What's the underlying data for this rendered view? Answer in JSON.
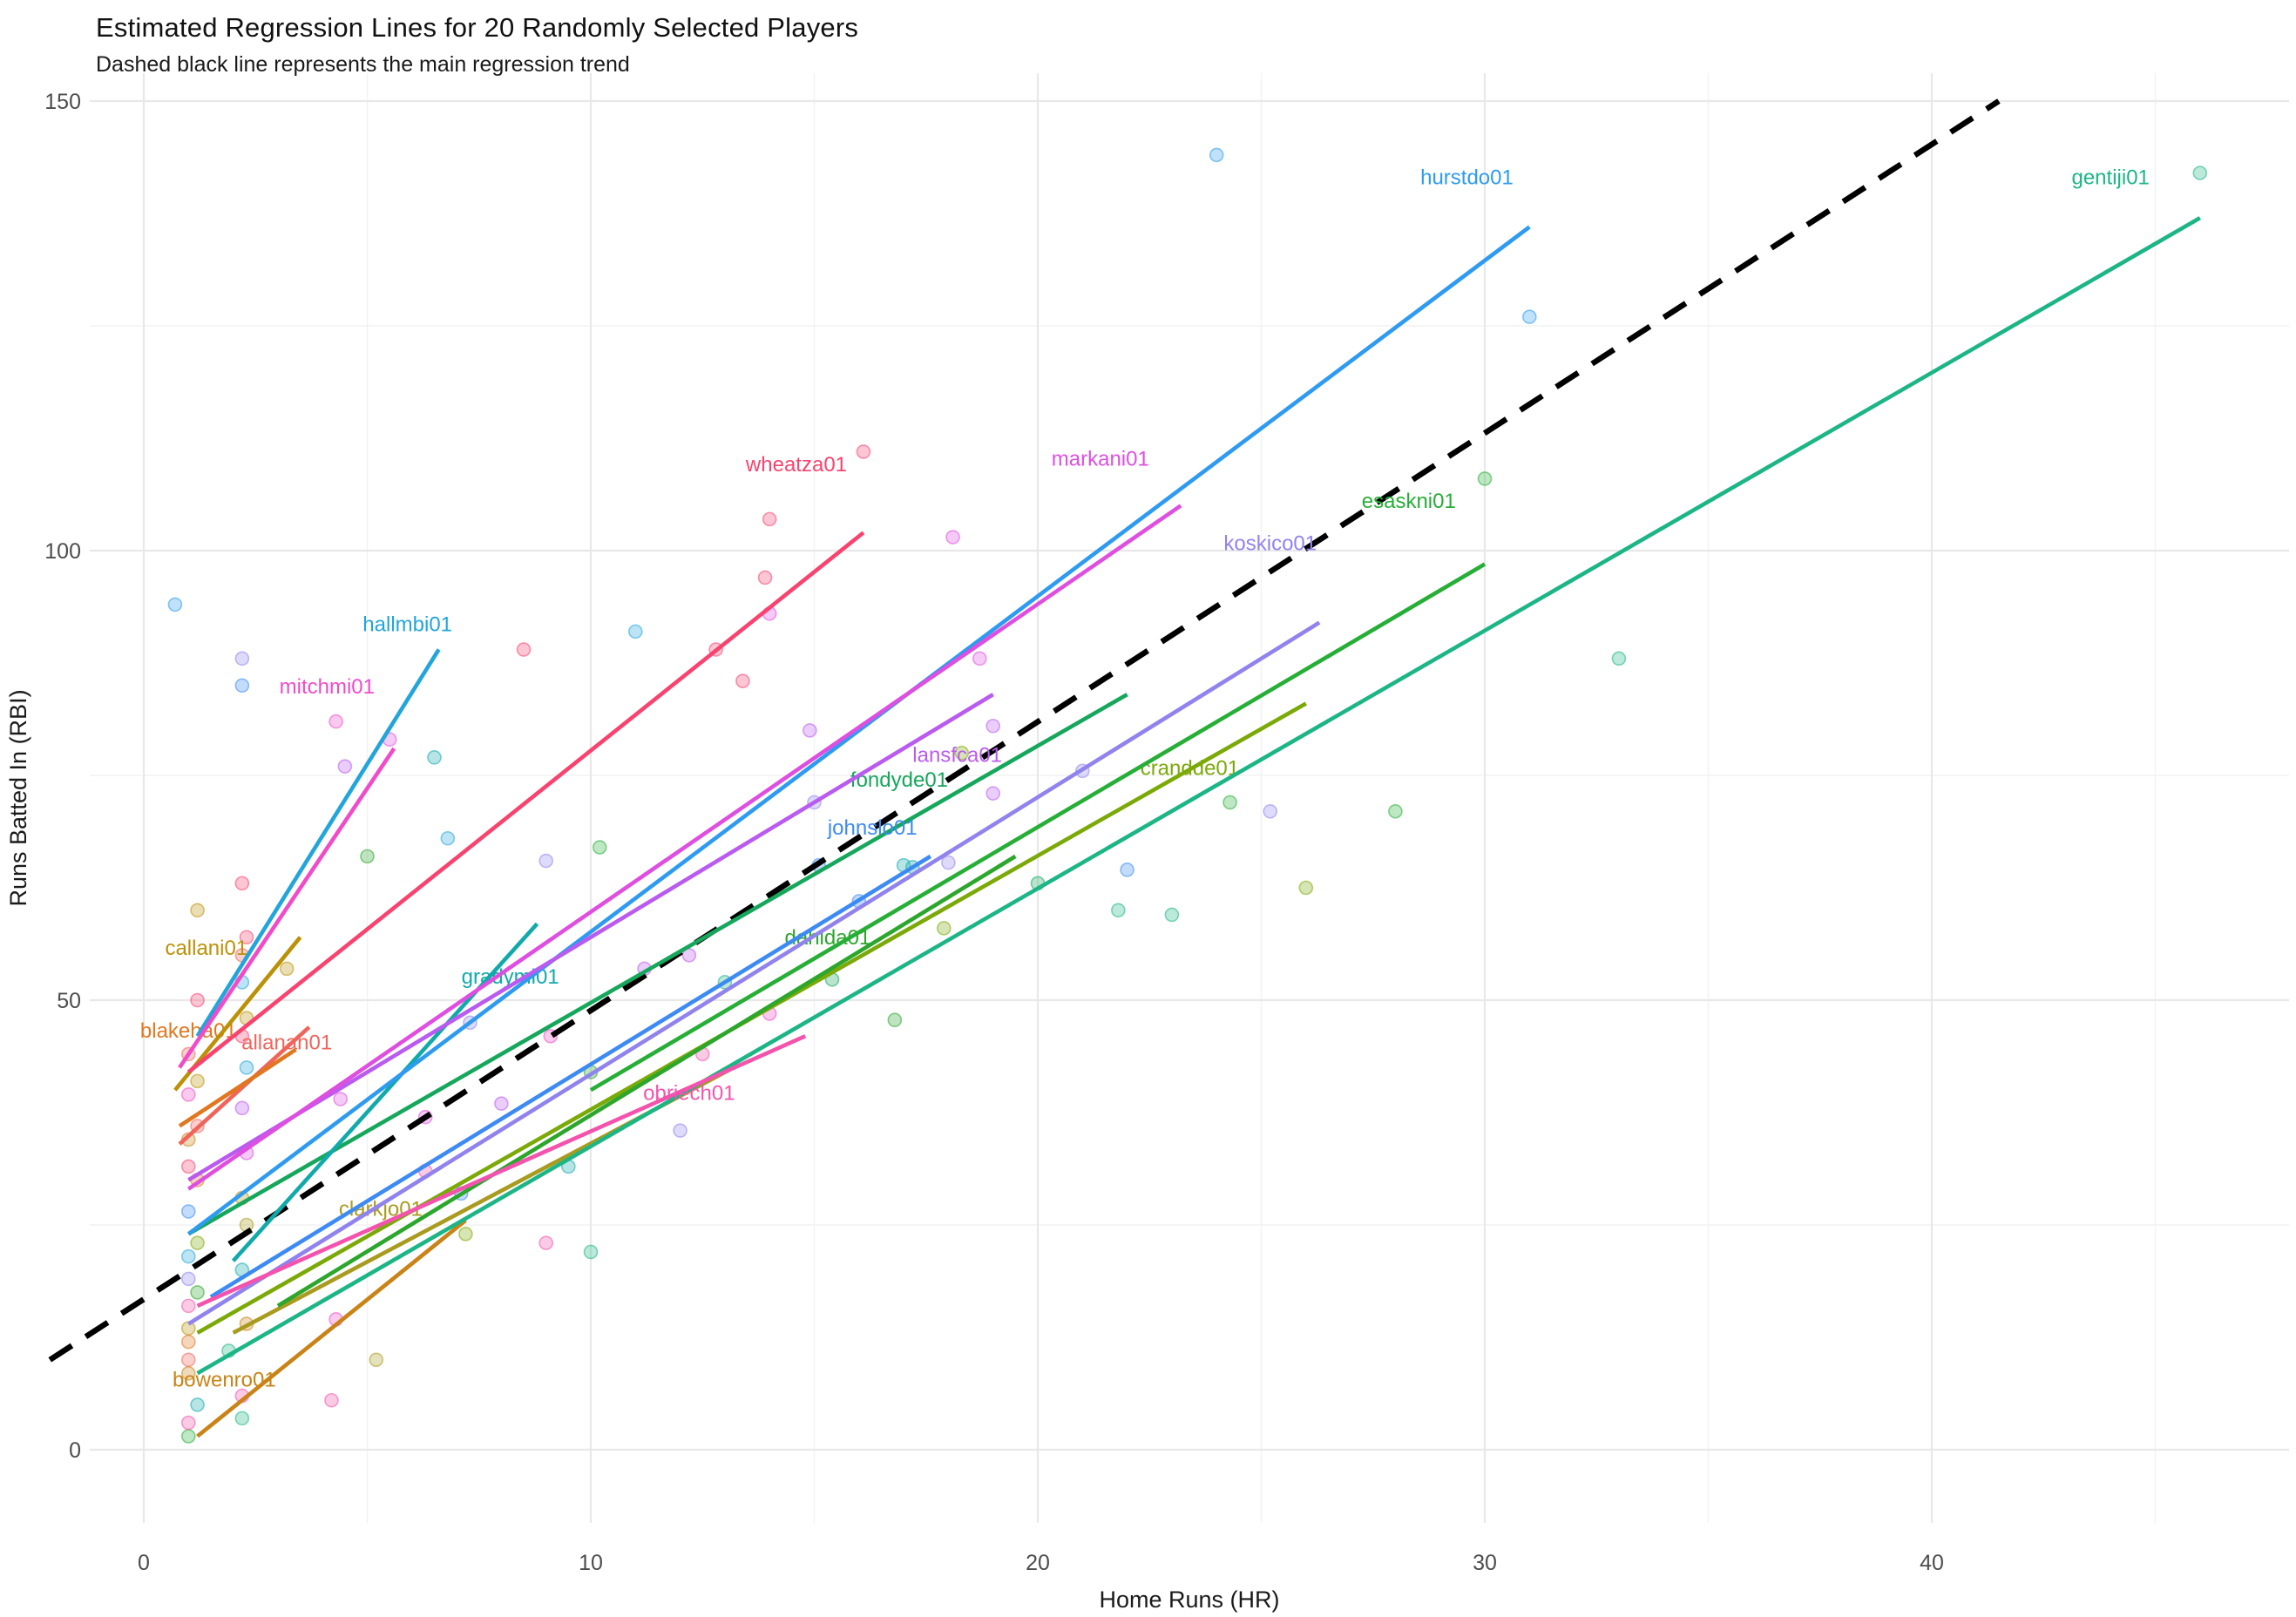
{
  "title": "Estimated Regression Lines for 20 Randomly Selected Players",
  "subtitle": "Dashed black line represents the main regression trend",
  "chart_data": {
    "type": "scatter",
    "title": "Estimated Regression Lines for 20 Randomly Selected Players",
    "subtitle": "Dashed black line represents the main regression trend",
    "xlabel": "Home Runs (HR)",
    "ylabel": "Runs Batted In (RBI)",
    "x_ticks": [
      0,
      10,
      20,
      30,
      40
    ],
    "y_ticks": [
      0,
      50,
      100,
      150
    ],
    "x_minor_ticks": [
      5,
      15,
      25,
      35,
      45
    ],
    "y_minor_ticks": [
      25,
      75,
      125
    ],
    "xlim": [
      -2.2,
      47.9
    ],
    "ylim": [
      -8,
      153
    ],
    "grid": true,
    "legend": "none (direct line labels)",
    "trend_line": {
      "name": "main-regression-trend",
      "style": "dashed",
      "color": "#000000",
      "x1": -2.1,
      "y1": 10,
      "x2": 41.5,
      "y2": 150
    },
    "players": [
      {
        "id": "allanan01",
        "color": "#F0655B",
        "line": {
          "x1": 0.8,
          "y1": 34,
          "x2": 3.7,
          "y2": 47
        },
        "label": {
          "x": 3.2,
          "y": 45.3
        }
      },
      {
        "id": "blakeha01",
        "color": "#E1771F",
        "line": {
          "x1": 0.8,
          "y1": 36,
          "x2": 3.4,
          "y2": 44.5
        },
        "label": {
          "x": 1.0,
          "y": 46.6
        }
      },
      {
        "id": "bowenro01",
        "color": "#C98316",
        "line": {
          "x1": 1.2,
          "y1": 1.5,
          "x2": 7.2,
          "y2": 25.5
        },
        "label": {
          "x": 1.8,
          "y": 7.8
        }
      },
      {
        "id": "callani01",
        "color": "#BB9107",
        "line": {
          "x1": 0.7,
          "y1": 40,
          "x2": 3.5,
          "y2": 57
        },
        "label": {
          "x": 1.4,
          "y": 55.8
        }
      },
      {
        "id": "clarkjo01",
        "color": "#A89B1F",
        "line": {
          "x1": 2.0,
          "y1": 13,
          "x2": 13.2,
          "y2": 42.5
        },
        "label": {
          "x": 5.3,
          "y": 26.8
        }
      },
      {
        "id": "crandde01",
        "color": "#7BA908",
        "line": {
          "x1": 1.2,
          "y1": 13,
          "x2": 26.0,
          "y2": 83
        },
        "label": {
          "x": 23.4,
          "y": 75.8
        }
      },
      {
        "id": "dahlda01",
        "color": "#2CA62C",
        "line": {
          "x1": 3.0,
          "y1": 16,
          "x2": 19.5,
          "y2": 66
        },
        "label": {
          "x": 15.3,
          "y": 57.0
        }
      },
      {
        "id": "esaskni01",
        "color": "#27AE37",
        "line": {
          "x1": 10.0,
          "y1": 40,
          "x2": 30.0,
          "y2": 98.5
        },
        "label": {
          "x": 28.3,
          "y": 105.5
        }
      },
      {
        "id": "fondyde01",
        "color": "#16A75C",
        "line": {
          "x1": 1.0,
          "y1": 24,
          "x2": 22.0,
          "y2": 84
        },
        "label": {
          "x": 16.9,
          "y": 74.5
        }
      },
      {
        "id": "gentiji01",
        "color": "#1DB586",
        "line": {
          "x1": 1.2,
          "y1": 8.5,
          "x2": 46.0,
          "y2": 137
        },
        "label": {
          "x": 44.0,
          "y": 141.5
        }
      },
      {
        "id": "gradymi01",
        "color": "#12A9AB",
        "line": {
          "x1": 2.0,
          "y1": 21,
          "x2": 8.8,
          "y2": 58.5
        },
        "label": {
          "x": 8.2,
          "y": 52.6
        }
      },
      {
        "id": "hallmbi01",
        "color": "#22A5DB",
        "line": {
          "x1": 1.2,
          "y1": 46,
          "x2": 6.6,
          "y2": 89
        },
        "label": {
          "x": 5.9,
          "y": 91.8
        }
      },
      {
        "id": "hurstdo01",
        "color": "#2E9BF0",
        "line": {
          "x1": 1.0,
          "y1": 24,
          "x2": 31.0,
          "y2": 136
        },
        "label": {
          "x": 29.6,
          "y": 141.5
        }
      },
      {
        "id": "johnslo01",
        "color": "#3D8BF2",
        "line": {
          "x1": 1.5,
          "y1": 17,
          "x2": 17.6,
          "y2": 66
        },
        "label": {
          "x": 16.3,
          "y": 69.2
        }
      },
      {
        "id": "koskico01",
        "color": "#9183EE",
        "line": {
          "x1": 1.0,
          "y1": 14,
          "x2": 26.3,
          "y2": 92
        },
        "label": {
          "x": 25.2,
          "y": 100.8
        }
      },
      {
        "id": "lansfca01",
        "color": "#BA5BEF",
        "line": {
          "x1": 1.0,
          "y1": 30,
          "x2": 19.0,
          "y2": 84
        },
        "label": {
          "x": 18.2,
          "y": 77.3
        }
      },
      {
        "id": "markani01",
        "color": "#DE4FE0",
        "line": {
          "x1": 1.0,
          "y1": 29,
          "x2": 23.2,
          "y2": 105
        },
        "label": {
          "x": 21.4,
          "y": 110.2
        }
      },
      {
        "id": "mitchmi01",
        "color": "#F04BC8",
        "line": {
          "x1": 0.8,
          "y1": 42.5,
          "x2": 5.6,
          "y2": 78
        },
        "label": {
          "x": 4.1,
          "y": 84.9
        }
      },
      {
        "id": "obriech01",
        "color": "#F353AC",
        "line": {
          "x1": 1.2,
          "y1": 16,
          "x2": 14.8,
          "y2": 46
        },
        "label": {
          "x": 12.2,
          "y": 39.7
        }
      },
      {
        "id": "wheatza01",
        "color": "#F8436F",
        "line": {
          "x1": 1.0,
          "y1": 42,
          "x2": 16.1,
          "y2": 102
        },
        "label": {
          "x": 14.6,
          "y": 109.6
        }
      }
    ],
    "points": [
      [
        0.7,
        94,
        "#2E9BF0"
      ],
      [
        2.2,
        88,
        "#9183EE"
      ],
      [
        2.2,
        85,
        "#3D8BF2"
      ],
      [
        4.3,
        81,
        "#F04BC8"
      ],
      [
        5.5,
        79,
        "#DE4FE0"
      ],
      [
        8.5,
        89,
        "#F8436F"
      ],
      [
        6.5,
        77,
        "#12A9AB"
      ],
      [
        4.5,
        76,
        "#BA5BEF"
      ],
      [
        6.8,
        68,
        "#22A5DB"
      ],
      [
        9,
        65.5,
        "#9183EE"
      ],
      [
        10.2,
        67,
        "#27AE37"
      ],
      [
        11,
        91,
        "#22A5DB"
      ],
      [
        12.8,
        89,
        "#F8436F"
      ],
      [
        14,
        103.5,
        "#F8436F"
      ],
      [
        13.9,
        97,
        "#F8436F"
      ],
      [
        14,
        93,
        "#DE4FE0"
      ],
      [
        13.4,
        85.5,
        "#F8436F"
      ],
      [
        16.1,
        111,
        "#F8436F"
      ],
      [
        18.1,
        101.5,
        "#DE4FE0"
      ],
      [
        14.9,
        80,
        "#BA5BEF"
      ],
      [
        15,
        72,
        "#9183EE"
      ],
      [
        16,
        61,
        "#3D8BF2"
      ],
      [
        17,
        65,
        "#12A9AB"
      ],
      [
        19,
        80.5,
        "#BA5BEF"
      ],
      [
        18.3,
        77.5,
        "#7BA908"
      ],
      [
        19,
        73,
        "#BA5BEF"
      ],
      [
        18.7,
        88,
        "#DE4FE0"
      ],
      [
        21,
        75.5,
        "#9183EE"
      ],
      [
        22,
        64.5,
        "#3D8BF2"
      ],
      [
        23,
        59.5,
        "#1DB586"
      ],
      [
        24,
        144,
        "#2E9BF0"
      ],
      [
        24.3,
        72,
        "#27AE37"
      ],
      [
        25.2,
        71,
        "#9183EE"
      ],
      [
        26,
        62.5,
        "#7BA908"
      ],
      [
        28,
        71,
        "#27AE37"
      ],
      [
        30,
        108,
        "#27AE37"
      ],
      [
        31,
        126,
        "#2E9BF0"
      ],
      [
        33,
        88,
        "#1DB586"
      ],
      [
        46,
        142,
        "#1DB586"
      ],
      [
        1,
        1.5,
        "#27AE37"
      ],
      [
        1,
        3,
        "#F353AC"
      ],
      [
        1.2,
        5,
        "#12A9AB"
      ],
      [
        2.2,
        3.5,
        "#1DB586"
      ],
      [
        2.2,
        6,
        "#F353AC"
      ],
      [
        1,
        8.5,
        "#C98316"
      ],
      [
        1,
        10,
        "#F0655B"
      ],
      [
        1.9,
        11,
        "#1DB586"
      ],
      [
        1,
        12,
        "#E1771F"
      ],
      [
        1,
        13.5,
        "#BB9107"
      ],
      [
        2.3,
        14,
        "#C98316"
      ],
      [
        1,
        16,
        "#F353AC"
      ],
      [
        1.2,
        17.5,
        "#2CA62C"
      ],
      [
        1,
        19,
        "#9183EE"
      ],
      [
        2.2,
        20,
        "#12A9AB"
      ],
      [
        1,
        21.5,
        "#22A5DB"
      ],
      [
        1.2,
        23,
        "#7BA908"
      ],
      [
        2.3,
        25,
        "#A89B1F"
      ],
      [
        1,
        26.5,
        "#3D8BF2"
      ],
      [
        2.2,
        28,
        "#BB9107"
      ],
      [
        1.2,
        30,
        "#E1771F"
      ],
      [
        1,
        31.5,
        "#F8436F"
      ],
      [
        2.3,
        33,
        "#DE4FE0"
      ],
      [
        1,
        34.5,
        "#C98316"
      ],
      [
        1.2,
        36,
        "#F0655B"
      ],
      [
        2.2,
        38,
        "#BA5BEF"
      ],
      [
        1,
        39.5,
        "#F04BC8"
      ],
      [
        1.2,
        41,
        "#BB9107"
      ],
      [
        2.3,
        42.5,
        "#22A5DB"
      ],
      [
        1,
        44,
        "#F0655B"
      ],
      [
        2.2,
        46,
        "#F8436F"
      ],
      [
        2.3,
        48,
        "#BB9107"
      ],
      [
        1.2,
        50,
        "#F8436F"
      ],
      [
        2.2,
        52,
        "#22A5DB"
      ],
      [
        3.2,
        53.5,
        "#BB9107"
      ],
      [
        2.2,
        55,
        "#F0655B"
      ],
      [
        2.3,
        57,
        "#F8436F"
      ],
      [
        1.2,
        60,
        "#BB9107"
      ],
      [
        2.2,
        63,
        "#F8436F"
      ],
      [
        5,
        66,
        "#2CA62C"
      ],
      [
        4.2,
        5.5,
        "#F353AC"
      ],
      [
        4.3,
        14.5,
        "#F04BC8"
      ],
      [
        5.2,
        10,
        "#A89B1F"
      ],
      [
        7.1,
        28.5,
        "#3D8BF2"
      ],
      [
        7.2,
        24,
        "#7BA908"
      ],
      [
        6.3,
        31,
        "#F353AC"
      ],
      [
        9,
        23,
        "#F353AC"
      ],
      [
        10,
        22,
        "#1DB586"
      ],
      [
        4.4,
        39,
        "#DE4FE0"
      ],
      [
        6.3,
        37,
        "#DE4FE0"
      ],
      [
        8,
        38.5,
        "#BA5BEF"
      ],
      [
        9.1,
        46,
        "#F04BC8"
      ],
      [
        7.3,
        47.5,
        "#9183EE"
      ],
      [
        10,
        42,
        "#2CA62C"
      ],
      [
        11.2,
        53.5,
        "#BA5BEF"
      ],
      [
        12,
        35.5,
        "#9183EE"
      ],
      [
        9.5,
        31.5,
        "#12A9AB"
      ],
      [
        12.2,
        55,
        "#BA5BEF"
      ],
      [
        12.5,
        44,
        "#F353AC"
      ],
      [
        13,
        52,
        "#1DB586"
      ],
      [
        14,
        48.5,
        "#F04BC8"
      ],
      [
        15.4,
        52.3,
        "#16A75C"
      ],
      [
        16.8,
        47.8,
        "#2CA62C"
      ],
      [
        17.9,
        58,
        "#7BA908"
      ],
      [
        20,
        63,
        "#16A75C"
      ],
      [
        21.8,
        60,
        "#1DB586"
      ],
      [
        15.1,
        65,
        "#3D8BF2"
      ],
      [
        17.2,
        64.8,
        "#12A9AB"
      ],
      [
        18,
        65.3,
        "#9183EE"
      ]
    ],
    "colors": {
      "grid_major": "#E8E8E8",
      "grid_minor": "#F2F2F2",
      "tick_text": "#4D4D4D",
      "axis_title_text": "#1A1A1A",
      "background": "#FFFFFF"
    }
  }
}
